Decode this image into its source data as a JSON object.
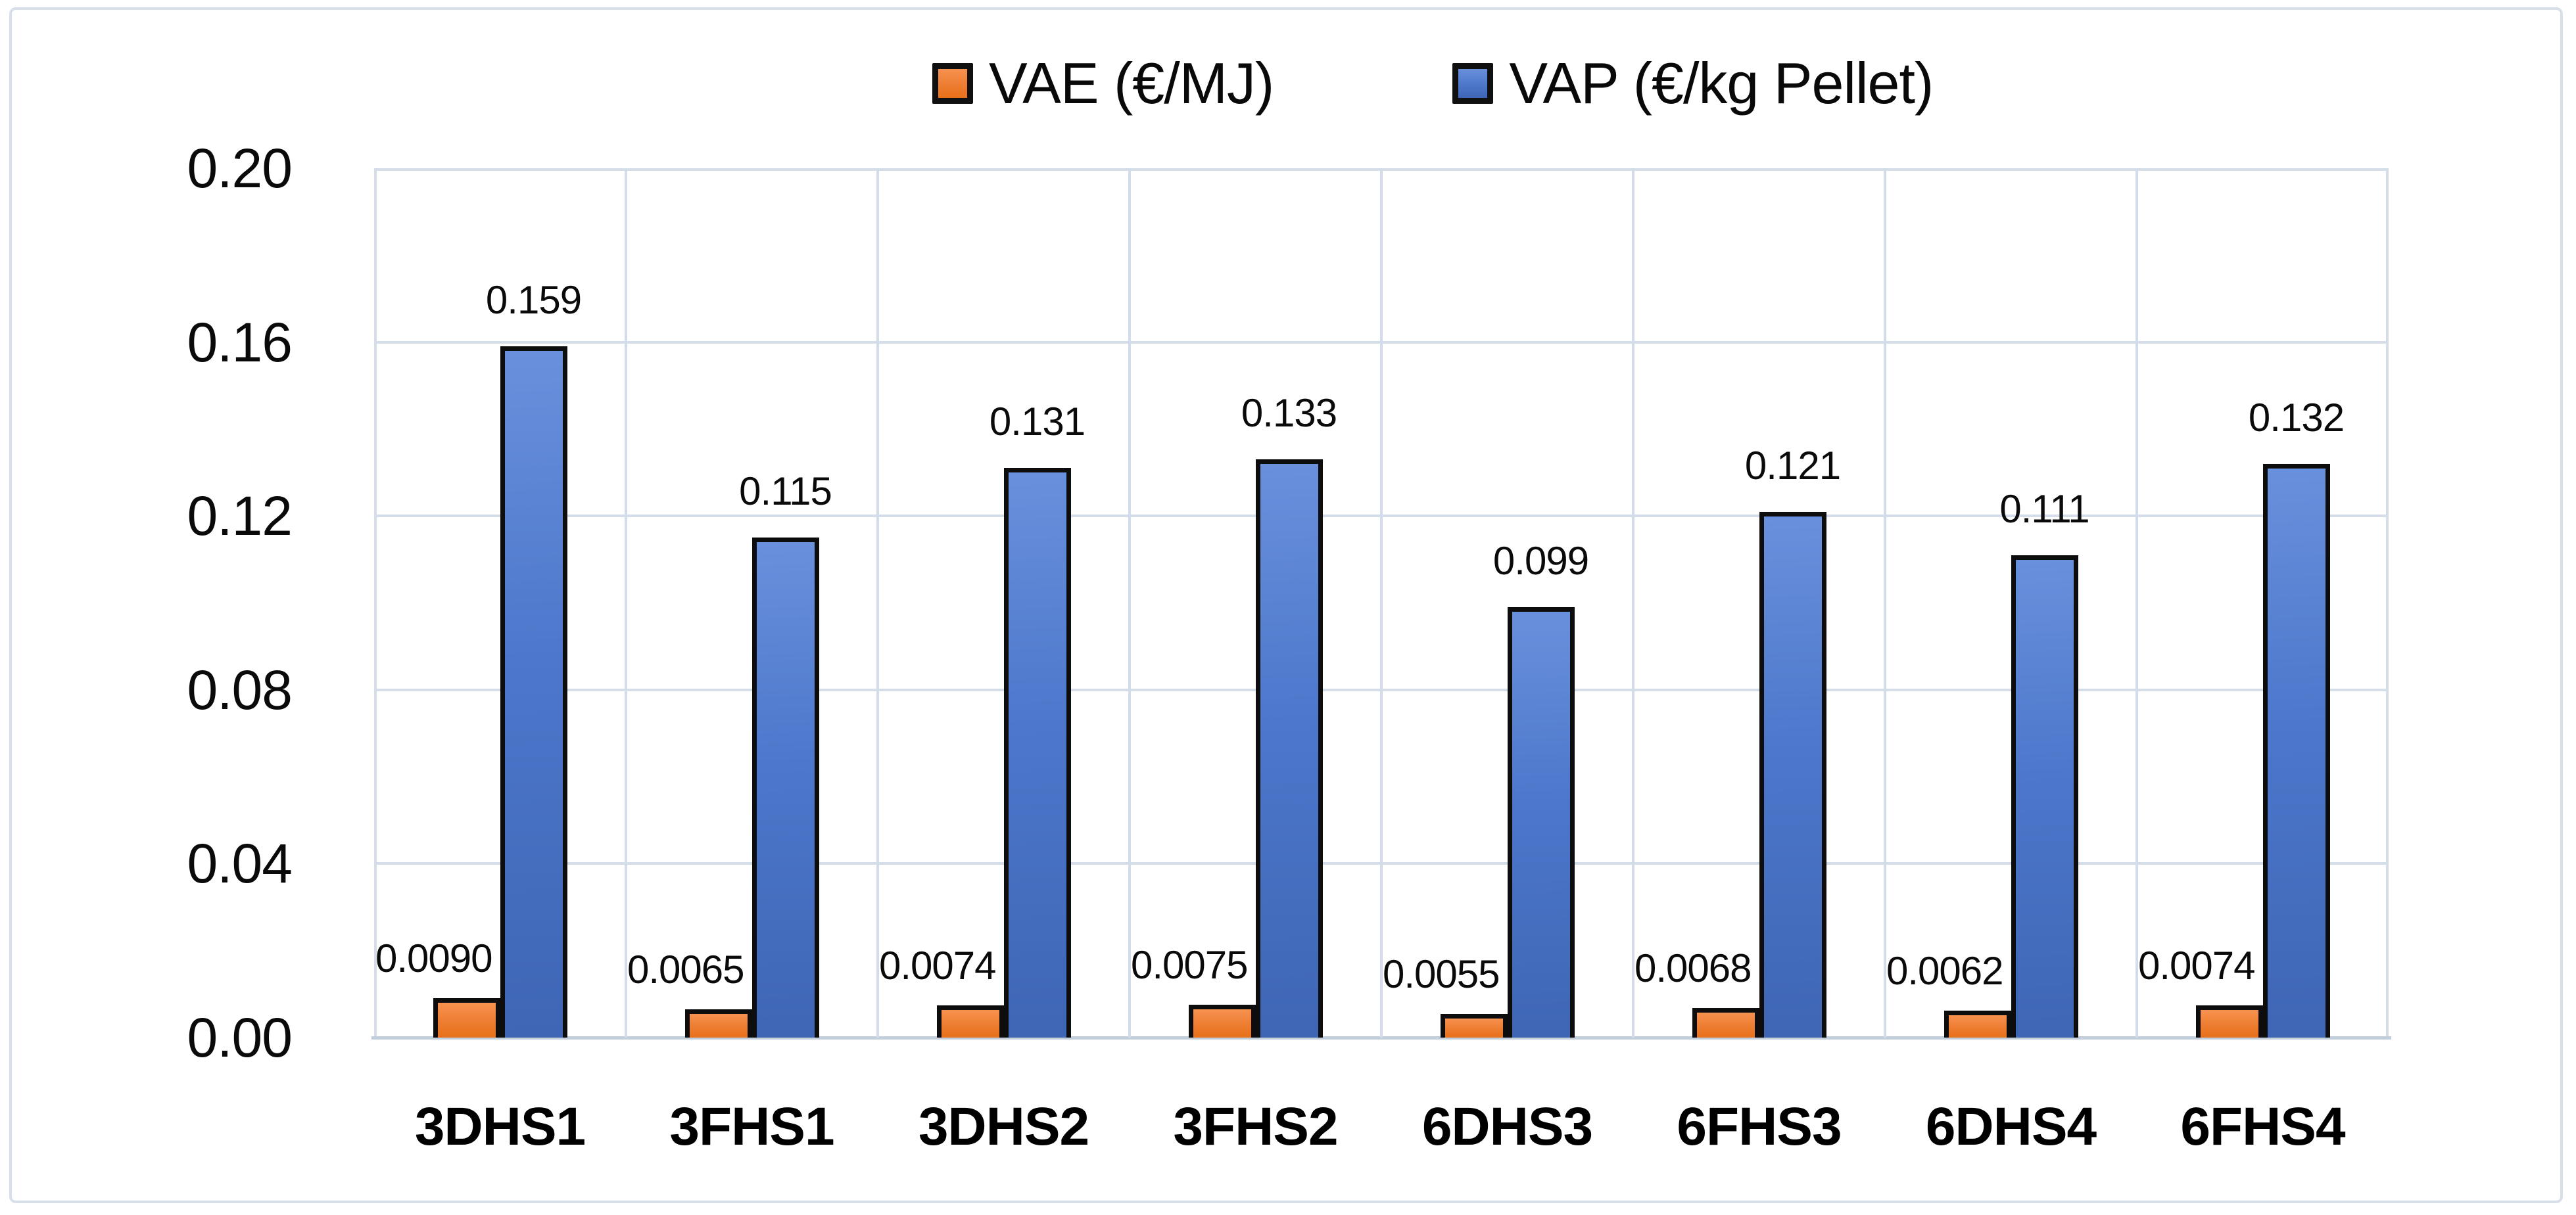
{
  "chart_data": {
    "type": "bar",
    "title": "",
    "categories": [
      "3DHS1",
      "3FHS1",
      "3DHS2",
      "3FHS2",
      "6DHS3",
      "6FHS3",
      "6DHS4",
      "6FHS4"
    ],
    "series": [
      {
        "name": "VAE (€/MJ)",
        "color": "#ED7D31",
        "values": [
          0.009,
          0.0065,
          0.0074,
          0.0075,
          0.0055,
          0.0068,
          0.0062,
          0.0074
        ],
        "value_labels": [
          "0.0090",
          "0.0065",
          "0.0074",
          "0.0075",
          "0.0055",
          "0.0068",
          "0.0062",
          "0.0074"
        ]
      },
      {
        "name": "VAP (€/kg Pellet)",
        "color": "#4472C4",
        "values": [
          0.159,
          0.115,
          0.131,
          0.133,
          0.099,
          0.121,
          0.111,
          0.132
        ],
        "value_labels": [
          "0.159",
          "0.115",
          "0.131",
          "0.133",
          "0.099",
          "0.121",
          "0.111",
          "0.132"
        ]
      }
    ],
    "y_axis": {
      "min": 0.0,
      "max": 0.2,
      "tick_interval": 0.04,
      "tick_labels": [
        "0.00",
        "0.04",
        "0.08",
        "0.12",
        "0.16",
        "0.20"
      ]
    },
    "x_axis": {
      "label": ""
    },
    "grid": true,
    "legend_position": "top-center",
    "colors": {
      "bar_outline": "#0d0d0d",
      "gridline": "#d5dde9",
      "frame_border": "#d8dfe9",
      "background": "#ffffff"
    }
  }
}
